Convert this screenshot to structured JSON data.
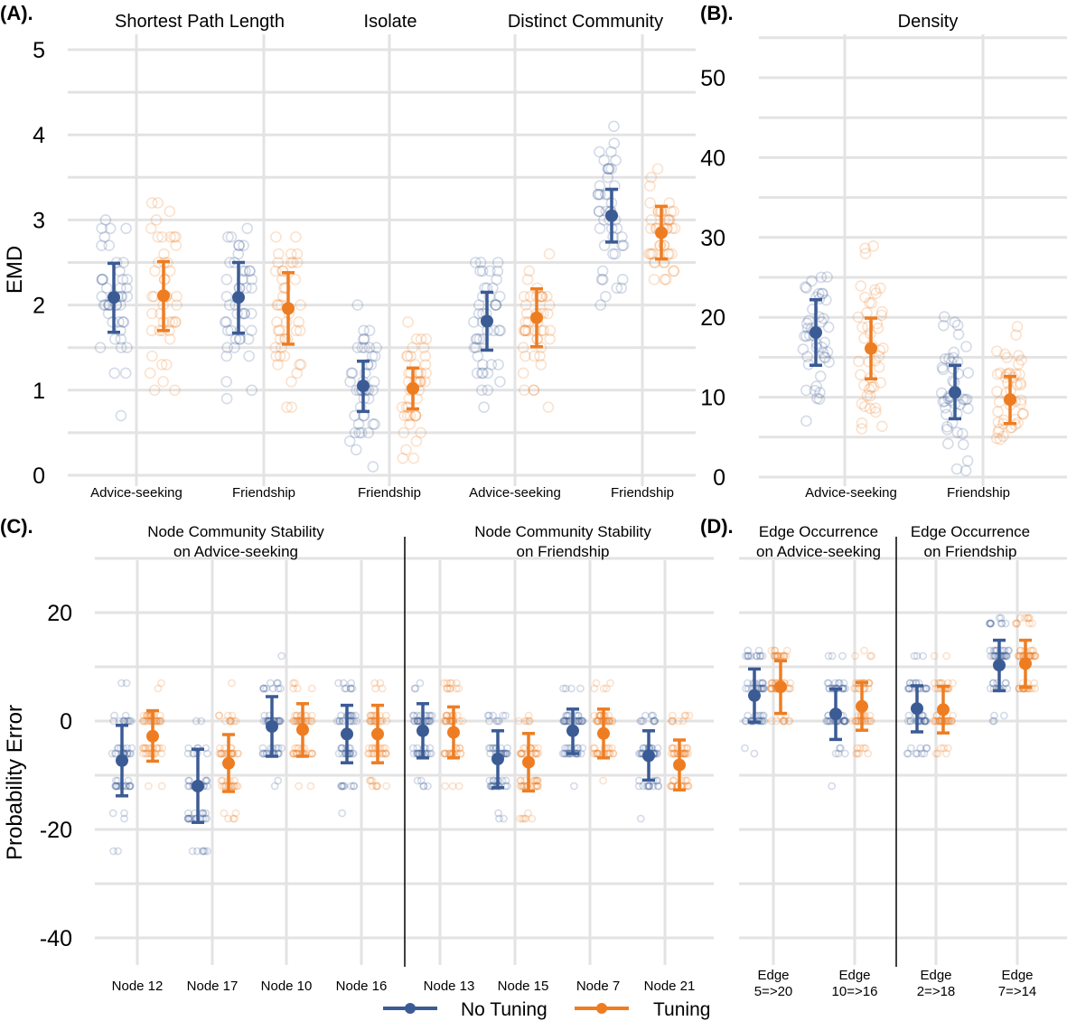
{
  "colors": {
    "no_tuning": "#3b5b95",
    "tuning": "#ee7d22",
    "grid": "#e3e3e3",
    "divider": "#000000"
  },
  "legend": {
    "items": [
      "No Tuning",
      "Tuning"
    ],
    "position": "bottom"
  },
  "chart_data": [
    {
      "panel": "(A).",
      "type": "scatter",
      "ylabel": "EMD",
      "ylim": [
        0,
        5
      ],
      "yticks": [
        0,
        1,
        2,
        3,
        4,
        5
      ],
      "facets": [
        {
          "title": "Shortest Path Length",
          "categories": [
            "Advice-seeking",
            "Friendship"
          ],
          "series": [
            {
              "name": "No Tuning",
              "mean": [
                2.09,
                2.09
              ],
              "lower": [
                1.68,
                1.67
              ],
              "upper": [
                2.49,
                2.5
              ]
            },
            {
              "name": "Tuning",
              "mean": [
                2.11,
                1.96
              ],
              "lower": [
                1.7,
                1.54
              ],
              "upper": [
                2.51,
                2.38
              ]
            }
          ]
        },
        {
          "title": "Isolate",
          "categories": [
            "Friendship"
          ],
          "series": [
            {
              "name": "No Tuning",
              "mean": [
                1.05
              ],
              "lower": [
                0.75
              ],
              "upper": [
                1.34
              ]
            },
            {
              "name": "Tuning",
              "mean": [
                1.02
              ],
              "lower": [
                0.78
              ],
              "upper": [
                1.26
              ]
            }
          ]
        },
        {
          "title": "Distinct Community",
          "categories": [
            "Advice-seeking",
            "Friendship"
          ],
          "series": [
            {
              "name": "No Tuning",
              "mean": [
                1.81,
                3.05
              ],
              "lower": [
                1.47,
                2.74
              ],
              "upper": [
                2.15,
                3.36
              ]
            },
            {
              "name": "Tuning",
              "mean": [
                1.85,
                2.85
              ],
              "lower": [
                1.51,
                2.54
              ],
              "upper": [
                2.19,
                3.16
              ]
            }
          ]
        }
      ]
    },
    {
      "panel": "(B).",
      "type": "scatter",
      "ylabel": "",
      "ylim": [
        0,
        55
      ],
      "yticks": [
        0,
        10,
        20,
        30,
        40,
        50
      ],
      "facets": [
        {
          "title": "Density",
          "categories": [
            "Advice-seeking",
            "Friendship"
          ],
          "series": [
            {
              "name": "No Tuning",
              "mean": [
                18.1,
                10.6
              ],
              "lower": [
                14.0,
                7.3
              ],
              "upper": [
                22.2,
                14.0
              ]
            },
            {
              "name": "Tuning",
              "mean": [
                16.1,
                9.7
              ],
              "lower": [
                12.3,
                6.7
              ],
              "upper": [
                19.9,
                12.6
              ]
            }
          ]
        }
      ]
    },
    {
      "panel": "(C).",
      "type": "scatter",
      "ylabel": "Probability Error",
      "ylim": [
        -45,
        30
      ],
      "yticks": [
        -40,
        -20,
        0,
        20
      ],
      "facets": [
        {
          "title": [
            "Node Community Stability",
            "on Advice-seeking"
          ],
          "categories": [
            "Node 12",
            "Node 17",
            "Node 10",
            "Node 16"
          ],
          "series": [
            {
              "name": "No Tuning",
              "mean": [
                -7.3,
                -12.0,
                -1.0,
                -2.4
              ],
              "lower": [
                -13.8,
                -18.7,
                -6.5,
                -7.7
              ],
              "upper": [
                -0.8,
                -5.2,
                4.5,
                2.9
              ]
            },
            {
              "name": "Tuning",
              "mean": [
                -2.8,
                -7.8,
                -1.6,
                -2.4
              ],
              "lower": [
                -7.4,
                -13.0,
                -6.5,
                -7.7
              ],
              "upper": [
                1.9,
                -2.5,
                3.2,
                2.9
              ]
            }
          ]
        },
        {
          "title": [
            "Node Community Stability",
            "on Friendship"
          ],
          "categories": [
            "Node 13",
            "Node 15",
            "Node 7",
            "Node 21"
          ],
          "series": [
            {
              "name": "No Tuning",
              "mean": [
                -1.8,
                -7.0,
                -1.8,
                -6.4
              ],
              "lower": [
                -6.8,
                -12.3,
                -6.0,
                -10.9
              ],
              "upper": [
                3.2,
                -1.8,
                2.2,
                -1.8
              ]
            },
            {
              "name": "Tuning",
              "mean": [
                -2.1,
                -7.6,
                -2.3,
                -8.1
              ],
              "lower": [
                -6.8,
                -12.9,
                -6.8,
                -12.7
              ],
              "upper": [
                2.6,
                -2.3,
                2.2,
                -3.5
              ]
            }
          ]
        }
      ]
    },
    {
      "panel": "(D).",
      "type": "scatter",
      "ylabel": "",
      "ylim": [
        -45,
        30
      ],
      "yticks": [
        -40,
        -20,
        0,
        20
      ],
      "facets": [
        {
          "title": [
            "Edge Occurrence",
            "on Advice-seeking"
          ],
          "categories": [
            [
              "Edge",
              "5=>20"
            ],
            [
              "Edge",
              "10=>16"
            ]
          ],
          "series": [
            {
              "name": "No Tuning",
              "mean": [
                4.7,
                1.3
              ],
              "lower": [
                -0.2,
                -3.4
              ],
              "upper": [
                9.6,
                5.9
              ]
            },
            {
              "name": "Tuning",
              "mean": [
                6.3,
                2.7
              ],
              "lower": [
                1.4,
                -1.7
              ],
              "upper": [
                11.1,
                7.1
              ]
            }
          ]
        },
        {
          "title": [
            "Edge Occurrence",
            "on Friendship"
          ],
          "categories": [
            [
              "Edge",
              "2=>18"
            ],
            [
              "Edge",
              "7=>14"
            ]
          ],
          "series": [
            {
              "name": "No Tuning",
              "mean": [
                2.3,
                10.3
              ],
              "lower": [
                -2.0,
                5.6
              ],
              "upper": [
                6.5,
                14.9
              ]
            },
            {
              "name": "Tuning",
              "mean": [
                2.1,
                10.6
              ],
              "lower": [
                -2.2,
                6.2
              ],
              "upper": [
                6.4,
                14.9
              ]
            }
          ]
        }
      ]
    }
  ]
}
